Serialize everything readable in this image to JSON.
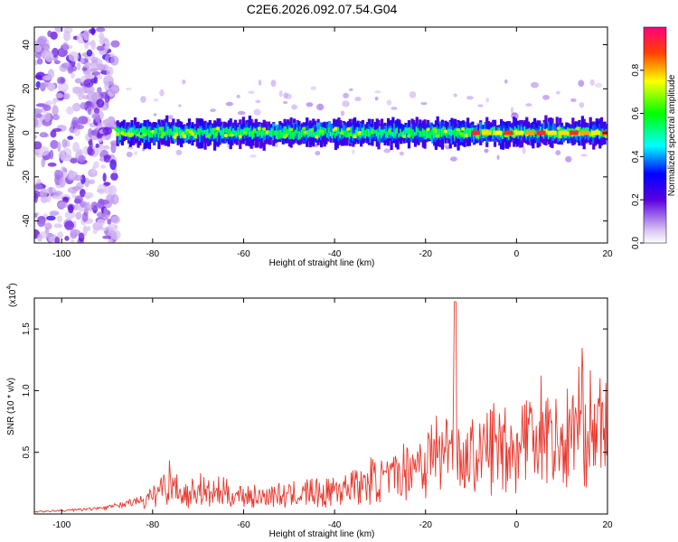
{
  "title": "C2E6.2026.092.07.54.G04",
  "colors": {
    "snr_line": "#e8392e",
    "axis": "#000000",
    "background": "#ffffff"
  },
  "chart_data": [
    {
      "type": "heatmap",
      "title": "C2E6.2026.092.07.54.G04",
      "xlabel": "Height of straight line (km)",
      "ylabel": "Frequency (Hz)",
      "xlim": [
        -106,
        20
      ],
      "ylim": [
        -50,
        48
      ],
      "x_ticks": [
        -100,
        -80,
        -60,
        -40,
        -20,
        0,
        20
      ],
      "y_ticks": [
        -40,
        -20,
        0,
        20,
        40
      ],
      "colorbar": {
        "label": "Normalized spectral amplitude",
        "range": [
          0,
          1
        ],
        "ticks": [
          "0.0",
          "0.2",
          "0.4",
          "0.6",
          "0.8"
        ],
        "colormap": "rainbow (violet to red)"
      },
      "features": {
        "scattered_noise_x": [
          -106,
          -88
        ],
        "band_center_hz": 0,
        "band_halfwidth_hz": 5,
        "high_amplitude_segment_x": [
          -10,
          20
        ]
      }
    },
    {
      "type": "line",
      "xlabel": "Height of straight line (km)",
      "ylabel": "SNR (10 * v/v)",
      "y_scale_label": "(x10",
      "y_scale_exponent": "4",
      "xlim": [
        -106,
        20
      ],
      "ylim": [
        0,
        1.75
      ],
      "x_ticks": [
        -100,
        -80,
        -60,
        -40,
        -20,
        0,
        20
      ],
      "y_ticks": [
        "0.5",
        "1.0",
        "1.5"
      ],
      "y_tick_values": [
        0.5,
        1.0,
        1.5
      ],
      "series": [
        {
          "x": [
            -106,
            -100,
            -95,
            -90,
            -86,
            -83,
            -81,
            -80,
            -78,
            -76,
            -74,
            -72,
            -70,
            -68,
            -65,
            -62,
            -60,
            -57,
            -54,
            -51,
            -48,
            -45,
            -42,
            -40,
            -38,
            -36,
            -34,
            -32,
            -30,
            -28,
            -26,
            -24,
            -22,
            -20,
            -18,
            -16,
            -14,
            -13.5,
            -13,
            -12,
            -10,
            -8,
            -6,
            -4,
            -2,
            0,
            2,
            4,
            6,
            8,
            10,
            12,
            14,
            16,
            18,
            20
          ],
          "y": [
            0.02,
            0.03,
            0.04,
            0.06,
            0.09,
            0.12,
            0.16,
            0.2,
            0.3,
            0.38,
            0.25,
            0.2,
            0.3,
            0.22,
            0.25,
            0.2,
            0.23,
            0.18,
            0.22,
            0.2,
            0.22,
            0.25,
            0.22,
            0.3,
            0.28,
            0.35,
            0.3,
            0.38,
            0.42,
            0.36,
            0.45,
            0.5,
            0.62,
            0.55,
            0.72,
            0.65,
            0.95,
            1.72,
            0.8,
            0.55,
            0.62,
            0.68,
            0.72,
            0.8,
            0.78,
            0.7,
            0.95,
            0.85,
            1.05,
            0.82,
            0.75,
            0.9,
            1.12,
            0.95,
            0.88,
            1.02
          ]
        }
      ]
    }
  ]
}
